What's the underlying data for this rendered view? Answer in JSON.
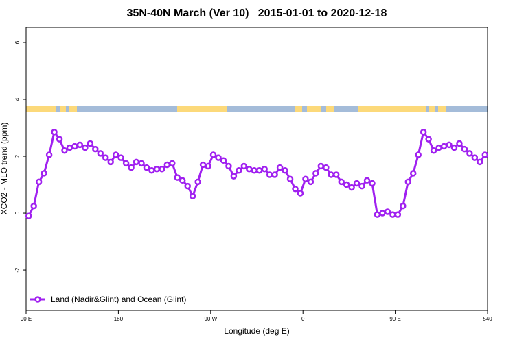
{
  "chart_data": {
    "type": "line",
    "title": "35N-40N March (Ver 10)   2015-01-01 to 2020-12-18",
    "x_label": "Longitude (deg E)",
    "y_label": "XCO2 - MLO trend (ppm)",
    "x": [
      92.5,
      97.5,
      102.5,
      107.5,
      112.5,
      117.5,
      122.5,
      127.5,
      132.5,
      137.5,
      142.5,
      147.5,
      152.5,
      157.5,
      162.5,
      167.5,
      172.5,
      177.5,
      182.5,
      187.5,
      192.5,
      197.5,
      202.5,
      207.5,
      212.5,
      217.5,
      222.5,
      227.5,
      232.5,
      237.5,
      242.5,
      247.5,
      252.5,
      257.5,
      262.5,
      267.5,
      272.5,
      277.5,
      282.5,
      287.5,
      292.5,
      297.5,
      302.5,
      307.5,
      312.5,
      317.5,
      322.5,
      327.5,
      332.5,
      337.5,
      342.5,
      347.5,
      352.5,
      357.5,
      362.5,
      367.5,
      372.5,
      377.5,
      382.5,
      387.5,
      392.5,
      397.5,
      402.5,
      407.5,
      412.5,
      417.5,
      422.5,
      427.5,
      432.5,
      437.5,
      442.5,
      447.5,
      452.5,
      457.5,
      462.5,
      467.5,
      472.5,
      477.5,
      482.5,
      487.5,
      492.5,
      497.5,
      502.5,
      507.5,
      512.5,
      517.5,
      522.5,
      527.5,
      532.5,
      537.5
    ],
    "series": [
      {
        "name": "Land (Nadir&Glint) and Ocean (Glint)",
        "color": "#a020f0",
        "values": [
          -0.1,
          0.25,
          1.1,
          1.4,
          2.05,
          2.85,
          2.6,
          2.2,
          2.3,
          2.35,
          2.4,
          2.3,
          2.45,
          2.25,
          2.1,
          1.95,
          1.8,
          2.05,
          1.95,
          1.75,
          1.6,
          1.8,
          1.75,
          1.6,
          1.5,
          1.55,
          1.55,
          1.7,
          1.75,
          1.25,
          1.15,
          0.95,
          0.6,
          1.1,
          1.7,
          1.65,
          2.05,
          1.95,
          1.85,
          1.65,
          1.3,
          1.5,
          1.65,
          1.55,
          1.5,
          1.5,
          1.55,
          1.35,
          1.35,
          1.6,
          1.5,
          1.2,
          0.85,
          0.7,
          1.2,
          1.1,
          1.4,
          1.65,
          1.6,
          1.35,
          1.35,
          1.1,
          1.0,
          0.9,
          1.05,
          0.95,
          1.15,
          1.05,
          -0.05,
          0.0,
          0.05,
          -0.05,
          -0.05,
          0.25,
          1.1,
          1.4,
          2.05,
          2.85,
          2.6,
          2.2,
          2.3,
          2.35,
          2.4,
          2.3,
          2.45,
          2.25,
          2.1,
          1.95,
          1.8,
          2.05
        ]
      }
    ],
    "xlim": [
      90,
      540
    ],
    "xticks": [
      {
        "value": 90,
        "label": "90 E"
      },
      180,
      {
        "value": 270,
        "label": "90 W"
      },
      {
        "value": 360,
        "label": "0"
      },
      {
        "value": 450,
        "label": "90 E"
      },
      540
    ],
    "ylim": [
      -3.42,
      6.53
    ],
    "yticks": [
      -2,
      0,
      2,
      4,
      6
    ],
    "legend": "bottom-left"
  }
}
